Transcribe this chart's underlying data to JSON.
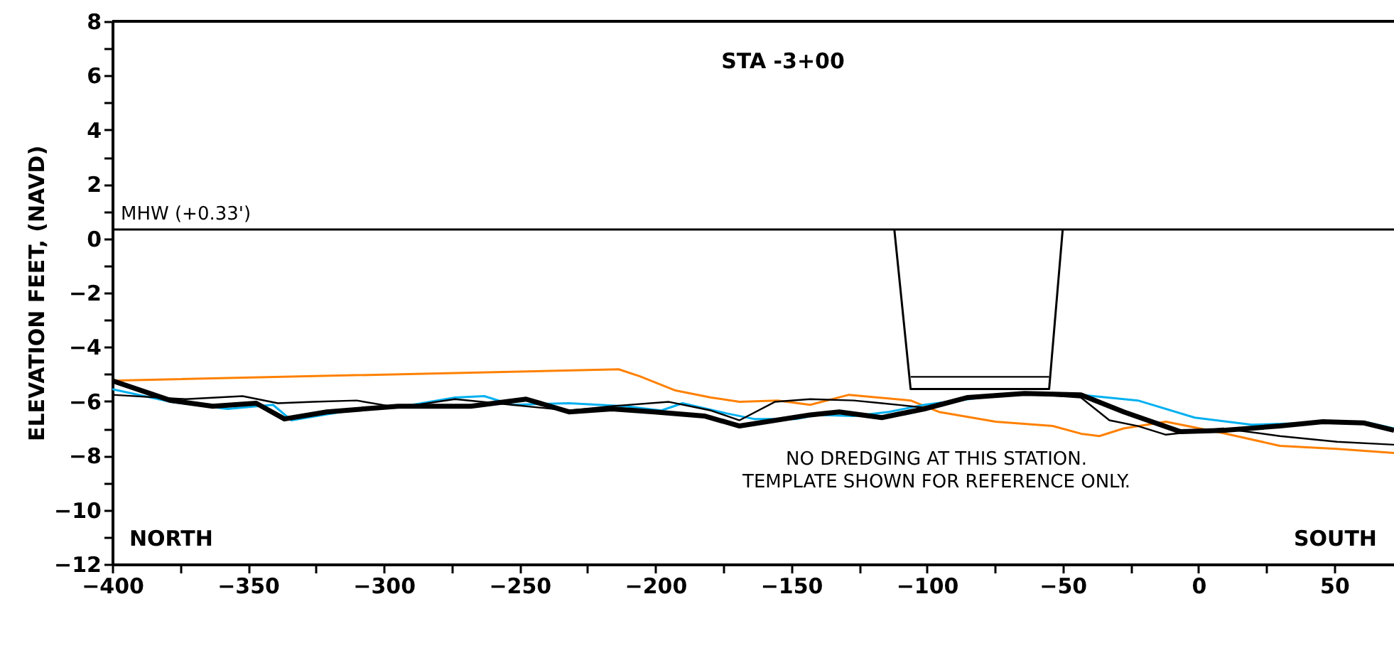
{
  "chart_data": {
    "type": "line",
    "title": "STA  -3+00",
    "ylabel": "ELEVATION FEET, (NAVD)",
    "xlim": [
      -400,
      72
    ],
    "ylim": [
      -12,
      8
    ],
    "xticks": [
      -400,
      {
        "value": -375,
        "label": null
      },
      -350,
      {
        "value": -325,
        "label": null
      },
      -300,
      {
        "value": -275,
        "label": null
      },
      -250,
      {
        "value": -225,
        "label": null
      },
      -200,
      {
        "value": -175,
        "label": null
      },
      -150,
      {
        "value": -125,
        "label": null
      },
      -100,
      {
        "value": -75,
        "label": null
      },
      -50,
      {
        "value": -25,
        "label": null
      },
      0,
      {
        "value": 25,
        "label": null
      },
      50
    ],
    "yticks": [
      -12,
      {
        "value": -11,
        "label": null
      },
      -10,
      {
        "value": -9,
        "label": null
      },
      -8,
      {
        "value": -7,
        "label": null
      },
      -6,
      {
        "value": -5,
        "label": null
      },
      -4,
      {
        "value": -3,
        "label": null
      },
      -2,
      {
        "value": -1,
        "label": null
      },
      0,
      {
        "value": 1,
        "label": null
      },
      2,
      {
        "value": 3,
        "label": null
      },
      4,
      {
        "value": 5,
        "label": null
      },
      6,
      {
        "value": 7,
        "label": null
      },
      8
    ],
    "grid": false,
    "series": [
      {
        "color": "#ff8000",
        "x": [
          -400,
          -213.5,
          -205.7,
          -192.6,
          -179.5,
          -169,
          -155,
          -143,
          -128.7,
          -106,
          -95.6,
          -74.7,
          -53.7,
          -43,
          -36.5,
          -27.6,
          -12,
          9,
          30,
          51,
          72
        ],
        "values": [
          -5.24,
          -4.82,
          -5.08,
          -5.6,
          -5.86,
          -6.02,
          -5.97,
          -6.13,
          -5.76,
          -5.97,
          -6.39,
          -6.75,
          -6.91,
          -7.2,
          -7.28,
          -7.0,
          -6.75,
          -7.17,
          -7.64,
          -7.75,
          -7.9
        ]
      },
      {
        "color": "#00b0f0",
        "x": [
          -400,
          -378.5,
          -357.6,
          -340.8,
          -334,
          -315.7,
          -289.5,
          -273.8,
          -263,
          -252.8,
          -231.8,
          -211,
          -197.8,
          -190,
          -174,
          -163.7,
          -148,
          -140,
          -127,
          -114,
          -101,
          -80,
          -64.2,
          -43.3,
          -22.3,
          -1.4,
          19.6,
          40.5,
          61,
          72
        ],
        "values": [
          -5.55,
          -6.02,
          -6.28,
          -6.13,
          -6.7,
          -6.39,
          -6.13,
          -5.86,
          -5.81,
          -6.13,
          -6.07,
          -6.18,
          -6.34,
          -6.07,
          -6.44,
          -6.65,
          -6.65,
          -6.5,
          -6.54,
          -6.39,
          -6.13,
          -5.86,
          -5.71,
          -5.76,
          -5.97,
          -6.6,
          -6.86,
          -6.8,
          -6.75,
          -7.0
        ]
      },
      {
        "color": "#000000",
        "x": [
          -400,
          -373,
          -352,
          -339,
          -326,
          -310,
          -294.7,
          -273.8,
          -252.8,
          -231.8,
          -216,
          -195,
          -179.5,
          -169,
          -156,
          -143,
          -127,
          -116.6,
          -101,
          -85,
          -64.2,
          -43.3,
          -32.8,
          -22.3,
          -12,
          9,
          30,
          51,
          72
        ],
        "values": [
          -5.76,
          -5.92,
          -5.81,
          -6.07,
          -6.02,
          -5.97,
          -6.23,
          -5.92,
          -6.13,
          -6.34,
          -6.18,
          -6.02,
          -6.34,
          -6.7,
          -6.02,
          -5.92,
          -5.97,
          -6.07,
          -6.23,
          -5.86,
          -5.71,
          -5.86,
          -6.7,
          -6.91,
          -7.23,
          -7.0,
          -7.28,
          -7.49,
          -7.6
        ]
      },
      {
        "color": "#000000",
        "x": [
          -400,
          -378.5,
          -363,
          -347,
          -336.6,
          -321,
          -294.7,
          -268,
          -247.6,
          -231.8,
          -216,
          -200.4,
          -182,
          -169,
          -143,
          -132.3,
          -116.6,
          -101,
          -85,
          -64,
          -43.3,
          -27.5,
          -6.6,
          9,
          30,
          45.8,
          61,
          72
        ],
        "values": [
          -5.24,
          -5.97,
          -6.18,
          -6.07,
          -6.65,
          -6.39,
          -6.18,
          -6.18,
          -5.92,
          -6.39,
          -6.28,
          -6.39,
          -6.54,
          -6.91,
          -6.5,
          -6.39,
          -6.6,
          -6.28,
          -5.86,
          -5.71,
          -5.76,
          -6.39,
          -7.12,
          -7.07,
          -6.91,
          -6.75,
          -6.8,
          -7.07
        ]
      },
      {
        "color": "#000000",
        "x": [
          -112,
          -106,
          -55,
          -50
        ],
        "values": [
          0.33,
          -5.55,
          -5.55,
          0.33
        ]
      },
      {
        "color": "#000000",
        "x": [
          -106,
          -55
        ],
        "values": [
          -5.1,
          -5.1
        ]
      }
    ],
    "ref_lines": [
      {
        "axis": "y",
        "value": 0.33,
        "label": "MHW (+0.33')",
        "color": "#000000"
      }
    ],
    "annotations": [
      "NORTH",
      "SOUTH",
      "NO DREDGING AT THIS STATION.",
      "TEMPLATE SHOWN FOR REFERENCE ONLY."
    ]
  }
}
